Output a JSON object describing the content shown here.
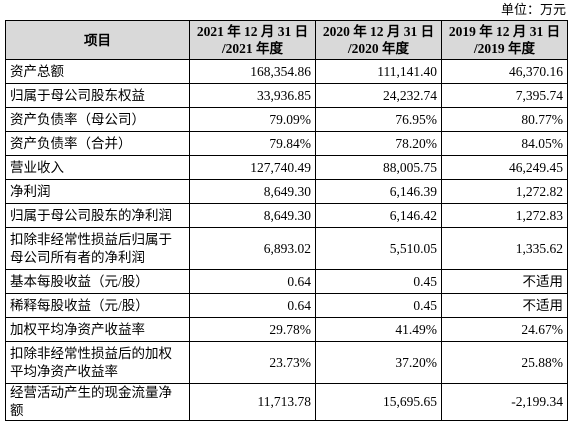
{
  "header": {
    "unit": "单位：万元"
  },
  "table": {
    "columns": [
      [
        "项目"
      ],
      [
        "2021 年 12 月 31 日",
        "/2021 年度"
      ],
      [
        "2020 年 12 月 31 日",
        "/2020 年度"
      ],
      [
        "2019 年 12 月 31 日",
        "/2019 年度"
      ]
    ],
    "rows": [
      [
        "资产总额",
        "168,354.86",
        "111,141.40",
        "46,370.16"
      ],
      [
        "归属于母公司股东权益",
        "33,936.85",
        "24,232.74",
        "7,395.74"
      ],
      [
        "资产负债率（母公司）",
        "79.09%",
        "76.95%",
        "80.77%"
      ],
      [
        "资产负债率（合并）",
        "79.84%",
        "78.20%",
        "84.05%"
      ],
      [
        "营业收入",
        "127,740.49",
        "88,005.75",
        "46,249.45"
      ],
      [
        "净利润",
        "8,649.30",
        "6,146.39",
        "1,272.82"
      ],
      [
        "归属于母公司股东的净利润",
        "8,649.30",
        "6,146.42",
        "1,272.83"
      ],
      [
        "扣除非经常性损益后归属于母公司所有者的净利润",
        "6,893.02",
        "5,510.05",
        "1,335.62"
      ],
      [
        "基本每股收益（元/股）",
        "0.64",
        "0.45",
        "不适用"
      ],
      [
        "稀释每股收益（元/股）",
        "0.64",
        "0.45",
        "不适用"
      ],
      [
        "加权平均净资产收益率",
        "29.78%",
        "41.49%",
        "24.67%"
      ],
      [
        "扣除非经常性损益后的加权平均净资产收益率",
        "23.73%",
        "37.20%",
        "25.88%"
      ],
      [
        "经营活动产生的现金流量净额",
        "11,713.78",
        "15,695.65",
        "-2,199.34"
      ]
    ]
  }
}
